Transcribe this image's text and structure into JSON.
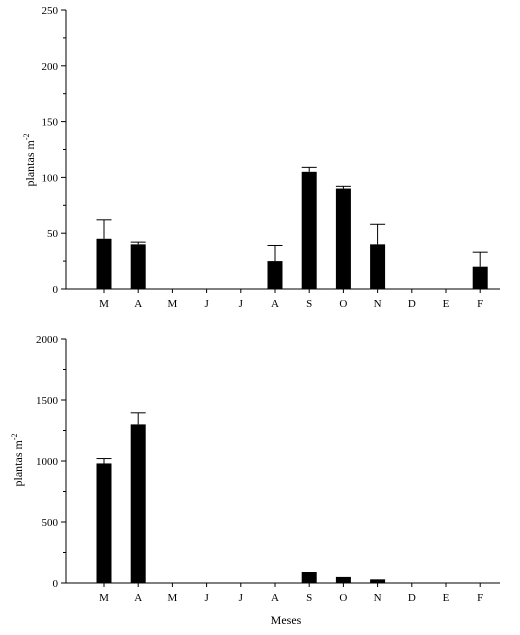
{
  "chart_data": [
    {
      "type": "bar",
      "categories": [
        "M",
        "A",
        "M",
        "J",
        "J",
        "A",
        "S",
        "O",
        "N",
        "D",
        "E",
        "F"
      ],
      "values": [
        45,
        40,
        0,
        0,
        0,
        25,
        105,
        90,
        40,
        0,
        0,
        20
      ],
      "errors": [
        17,
        2,
        0,
        0,
        0,
        14,
        4,
        2,
        18,
        0,
        0,
        13
      ],
      "ylabel": "plantas m",
      "ylabel_sup": "-2",
      "xlabel": "",
      "ylim": [
        0,
        250
      ],
      "yticks": [
        0,
        50,
        100,
        150,
        200,
        250
      ],
      "grid": false,
      "bar_color": "#000000"
    },
    {
      "type": "bar",
      "categories": [
        "M",
        "A",
        "M",
        "J",
        "J",
        "A",
        "S",
        "O",
        "N",
        "D",
        "E",
        "F"
      ],
      "values": [
        980,
        1300,
        0,
        0,
        0,
        0,
        90,
        50,
        30,
        0,
        0,
        0
      ],
      "errors": [
        40,
        95,
        0,
        0,
        0,
        0,
        0,
        0,
        0,
        0,
        0,
        0
      ],
      "ylabel": "plantas m",
      "ylabel_sup": "-2",
      "xlabel": "Meses",
      "ylim": [
        0,
        2000
      ],
      "yticks": [
        0,
        500,
        1000,
        1500,
        2000
      ],
      "grid": false,
      "bar_color": "#000000"
    }
  ]
}
